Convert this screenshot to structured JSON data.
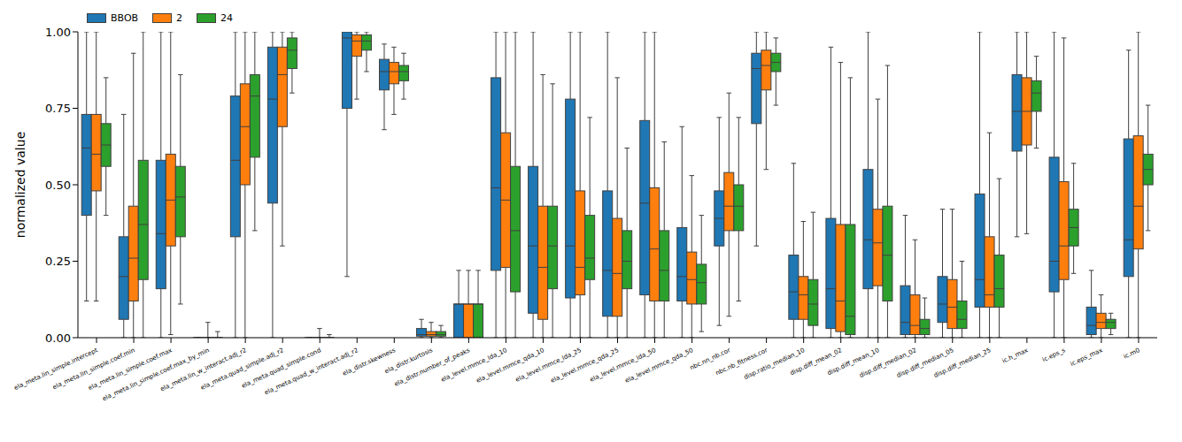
{
  "chart_data": {
    "type": "box",
    "y_label": "normalized value",
    "ylim": [
      0,
      1
    ],
    "yticks": [
      {
        "value": 0,
        "label": "0.00"
      },
      {
        "value": 0.25,
        "label": "0.25"
      },
      {
        "value": 0.5,
        "label": "0.50"
      },
      {
        "value": 0.75,
        "label": "0.75"
      },
      {
        "value": 1,
        "label": "1.00"
      }
    ],
    "legend": "upper left",
    "categories": [
      "ela_meta.lin_simple.intercept",
      "ela_meta.lin_simple.coef.min",
      "ela_meta.lin_simple.coef.max",
      "ela_meta.lin_simple.coef.max_by_min",
      "ela_meta.lin_w_interact.adj_r2",
      "ela_meta.quad_simple.adj_r2",
      "ela_meta.quad_simple.cond",
      "ela_meta.quad_w_interact.adj_r2",
      "ela_distr.skewness",
      "ela_distr.kurtosis",
      "ela_distr.number_of_peaks",
      "ela_level.mmce_lda_10",
      "ela_level.mmce_qda_10",
      "ela_level.mmce_lda_25",
      "ela_level.mmce_qda_25",
      "ela_level.mmce_lda_50",
      "ela_level.mmce_qda_50",
      "nbc.nn_nb.cor",
      "nbc.nb_fitness.cor",
      "disp.ratio_median_10",
      "disp.diff_mean_02",
      "disp.diff_mean_10",
      "disp.diff_median_02",
      "disp.diff_median_05",
      "disp.diff_median_25",
      "ic.h_max",
      "ic.eps_s",
      "ic.eps_max",
      "ic.m0"
    ],
    "series": [
      {
        "name": "BBOB",
        "color": "#1f77b4",
        "whisker_low": [
          0.12,
          0,
          0,
          0,
          0,
          0,
          0,
          0.2,
          0.68,
          0,
          0,
          0,
          0,
          0,
          0,
          0,
          0,
          0.04,
          0.3,
          0,
          0,
          0,
          0,
          0,
          0,
          0.33,
          0,
          0,
          0
        ],
        "q1": [
          0.4,
          0.06,
          0.16,
          0,
          0.33,
          0.44,
          0,
          0.75,
          0.81,
          0.005,
          0,
          0.22,
          0.08,
          0.13,
          0.07,
          0.14,
          0.12,
          0.3,
          0.7,
          0.06,
          0.03,
          0.16,
          0.01,
          0.05,
          0.1,
          0.61,
          0.15,
          0.01,
          0.2
        ],
        "median": [
          0.62,
          0.2,
          0.34,
          0,
          0.58,
          0.78,
          0,
          0.98,
          0.87,
          0.01,
          0.11,
          0.49,
          0.3,
          0.3,
          0.22,
          0.44,
          0.2,
          0.39,
          0.88,
          0.15,
          0.16,
          0.32,
          0.05,
          0.11,
          0.19,
          0.74,
          0.25,
          0.04,
          0.32
        ],
        "q3": [
          0.73,
          0.33,
          0.58,
          0,
          0.79,
          0.95,
          0,
          1,
          0.91,
          0.03,
          0.11,
          0.85,
          0.56,
          0.78,
          0.48,
          0.71,
          0.36,
          0.48,
          0.93,
          0.27,
          0.39,
          0.55,
          0.17,
          0.2,
          0.47,
          0.86,
          0.59,
          0.1,
          0.65
        ],
        "whisker_high": [
          1,
          0.73,
          1,
          0,
          1,
          1,
          0,
          1,
          0.96,
          0.06,
          0.22,
          1,
          1,
          1,
          1,
          1,
          0.69,
          0.72,
          1,
          0.57,
          0.95,
          1,
          0.4,
          0.42,
          1,
          1,
          1,
          0.22,
          0.94
        ]
      },
      {
        "name": "2",
        "color": "#ff7f0e",
        "whisker_low": [
          0.12,
          0,
          0.01,
          0,
          0,
          0.3,
          0,
          0.78,
          0.73,
          0,
          0,
          0,
          0,
          0,
          0,
          0,
          0,
          0.07,
          0.55,
          0,
          0,
          0,
          0,
          0,
          0,
          0.34,
          0,
          0,
          0
        ],
        "q1": [
          0.48,
          0.12,
          0.3,
          0,
          0.5,
          0.69,
          0,
          0.92,
          0.83,
          0.005,
          0,
          0.23,
          0.06,
          0.14,
          0.07,
          0.12,
          0.11,
          0.35,
          0.81,
          0.06,
          0.02,
          0.17,
          0.01,
          0.03,
          0.1,
          0.63,
          0.19,
          0.03,
          0.29
        ],
        "median": [
          0.6,
          0.26,
          0.45,
          0,
          0.69,
          0.86,
          0,
          0.97,
          0.87,
          0.01,
          0.11,
          0.45,
          0.23,
          0.23,
          0.21,
          0.29,
          0.19,
          0.43,
          0.89,
          0.14,
          0.12,
          0.31,
          0.04,
          0.1,
          0.14,
          0.74,
          0.3,
          0.05,
          0.43
        ],
        "q3": [
          0.73,
          0.43,
          0.6,
          0,
          0.83,
          0.95,
          0,
          0.99,
          0.9,
          0.02,
          0.11,
          0.67,
          0.43,
          0.48,
          0.39,
          0.49,
          0.28,
          0.54,
          0.94,
          0.2,
          0.37,
          0.42,
          0.14,
          0.19,
          0.33,
          0.85,
          0.51,
          0.08,
          0.66
        ],
        "whisker_high": [
          1,
          0.93,
          1,
          0.05,
          1,
          1,
          0.03,
          1,
          0.95,
          0.05,
          0.22,
          1,
          0.86,
          1,
          0.85,
          1,
          0.53,
          0.8,
          1,
          0.38,
          0.9,
          0.78,
          0.32,
          0.42,
          0.67,
          1,
          0.98,
          0.14,
          1
        ]
      },
      {
        "name": "24",
        "color": "#2ca02c",
        "whisker_low": [
          0.4,
          0,
          0.11,
          0,
          0.35,
          0.8,
          0,
          0.87,
          0.78,
          0,
          0,
          0,
          0,
          0,
          0,
          0,
          0.02,
          0.12,
          0.76,
          0,
          0,
          0,
          0,
          0,
          0,
          0.62,
          0.21,
          0.01,
          0.35
        ],
        "q1": [
          0.56,
          0.19,
          0.33,
          0,
          0.59,
          0.88,
          0,
          0.94,
          0.84,
          0.005,
          0,
          0.15,
          0.16,
          0.19,
          0.16,
          0.12,
          0.11,
          0.35,
          0.87,
          0.04,
          0.01,
          0.12,
          0.01,
          0.03,
          0.1,
          0.74,
          0.3,
          0.03,
          0.5
        ],
        "median": [
          0.63,
          0.37,
          0.46,
          0,
          0.79,
          0.94,
          0,
          0.97,
          0.87,
          0.01,
          0.11,
          0.35,
          0.3,
          0.26,
          0.25,
          0.22,
          0.18,
          0.43,
          0.9,
          0.11,
          0.07,
          0.27,
          0.03,
          0.06,
          0.16,
          0.8,
          0.36,
          0.05,
          0.55
        ],
        "q3": [
          0.7,
          0.58,
          0.56,
          0,
          0.86,
          0.98,
          0,
          0.99,
          0.89,
          0.02,
          0.11,
          0.56,
          0.43,
          0.4,
          0.35,
          0.35,
          0.24,
          0.5,
          0.93,
          0.19,
          0.37,
          0.43,
          0.06,
          0.12,
          0.27,
          0.84,
          0.42,
          0.06,
          0.6
        ],
        "whisker_high": [
          0.85,
          1,
          0.86,
          0.02,
          1,
          1,
          0.01,
          1,
          0.93,
          0.04,
          0.22,
          1,
          0.83,
          0.72,
          0.62,
          0.64,
          0.4,
          0.72,
          0.98,
          0.41,
          0.85,
          0.89,
          0.13,
          0.25,
          0.52,
          0.92,
          0.57,
          0.08,
          0.76
        ]
      }
    ]
  }
}
